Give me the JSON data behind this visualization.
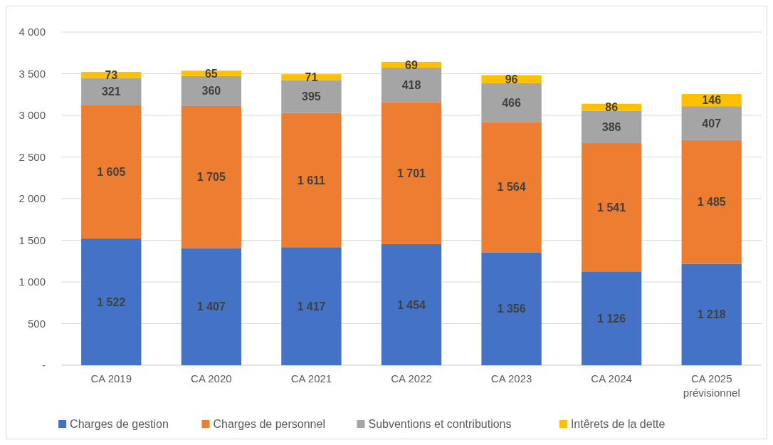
{
  "chart_data": {
    "type": "bar",
    "stacked": true,
    "categories": [
      "CA 2019",
      "CA 2020",
      "CA 2021",
      "CA 2022",
      "CA 2023",
      "CA 2024",
      "CA 2025 prévisionnel"
    ],
    "series": [
      {
        "name": "Charges de gestion",
        "color": "#4472c4",
        "values": [
          1522,
          1407,
          1417,
          1454,
          1356,
          1126,
          1218
        ],
        "value_labels": [
          "1 522",
          "1 407",
          "1 417",
          "1 454",
          "1 356",
          "1 126",
          "1 218"
        ]
      },
      {
        "name": "Charges de personnel",
        "color": "#ed7d31",
        "values": [
          1605,
          1705,
          1611,
          1701,
          1564,
          1541,
          1485
        ],
        "value_labels": [
          "1 605",
          "1 705",
          "1 611",
          "1 701",
          "1 564",
          "1 541",
          "1 485"
        ]
      },
      {
        "name": "Subventions et contributions",
        "color": "#a5a5a5",
        "values": [
          321,
          360,
          395,
          418,
          466,
          386,
          407
        ],
        "value_labels": [
          "321",
          "360",
          "395",
          "418",
          "466",
          "386",
          "407"
        ]
      },
      {
        "name": "Intêrets de la dette",
        "color": "#ffc000",
        "values": [
          73,
          65,
          71,
          69,
          96,
          86,
          146
        ],
        "value_labels": [
          "73",
          "65",
          "71",
          "69",
          "96",
          "86",
          "146"
        ]
      }
    ],
    "ylim": [
      0,
      4000
    ],
    "yticks": [
      {
        "value": 0,
        "label": "-"
      },
      {
        "value": 500,
        "label": "500"
      },
      {
        "value": 1000,
        "label": "1 000"
      },
      {
        "value": 1500,
        "label": "1 500"
      },
      {
        "value": 2000,
        "label": "2 000"
      },
      {
        "value": 2500,
        "label": "2 500"
      },
      {
        "value": 3000,
        "label": "3 000"
      },
      {
        "value": 3500,
        "label": "3 500"
      },
      {
        "value": 4000,
        "label": "4 000"
      }
    ],
    "grid": "y",
    "legend": "bottom"
  }
}
